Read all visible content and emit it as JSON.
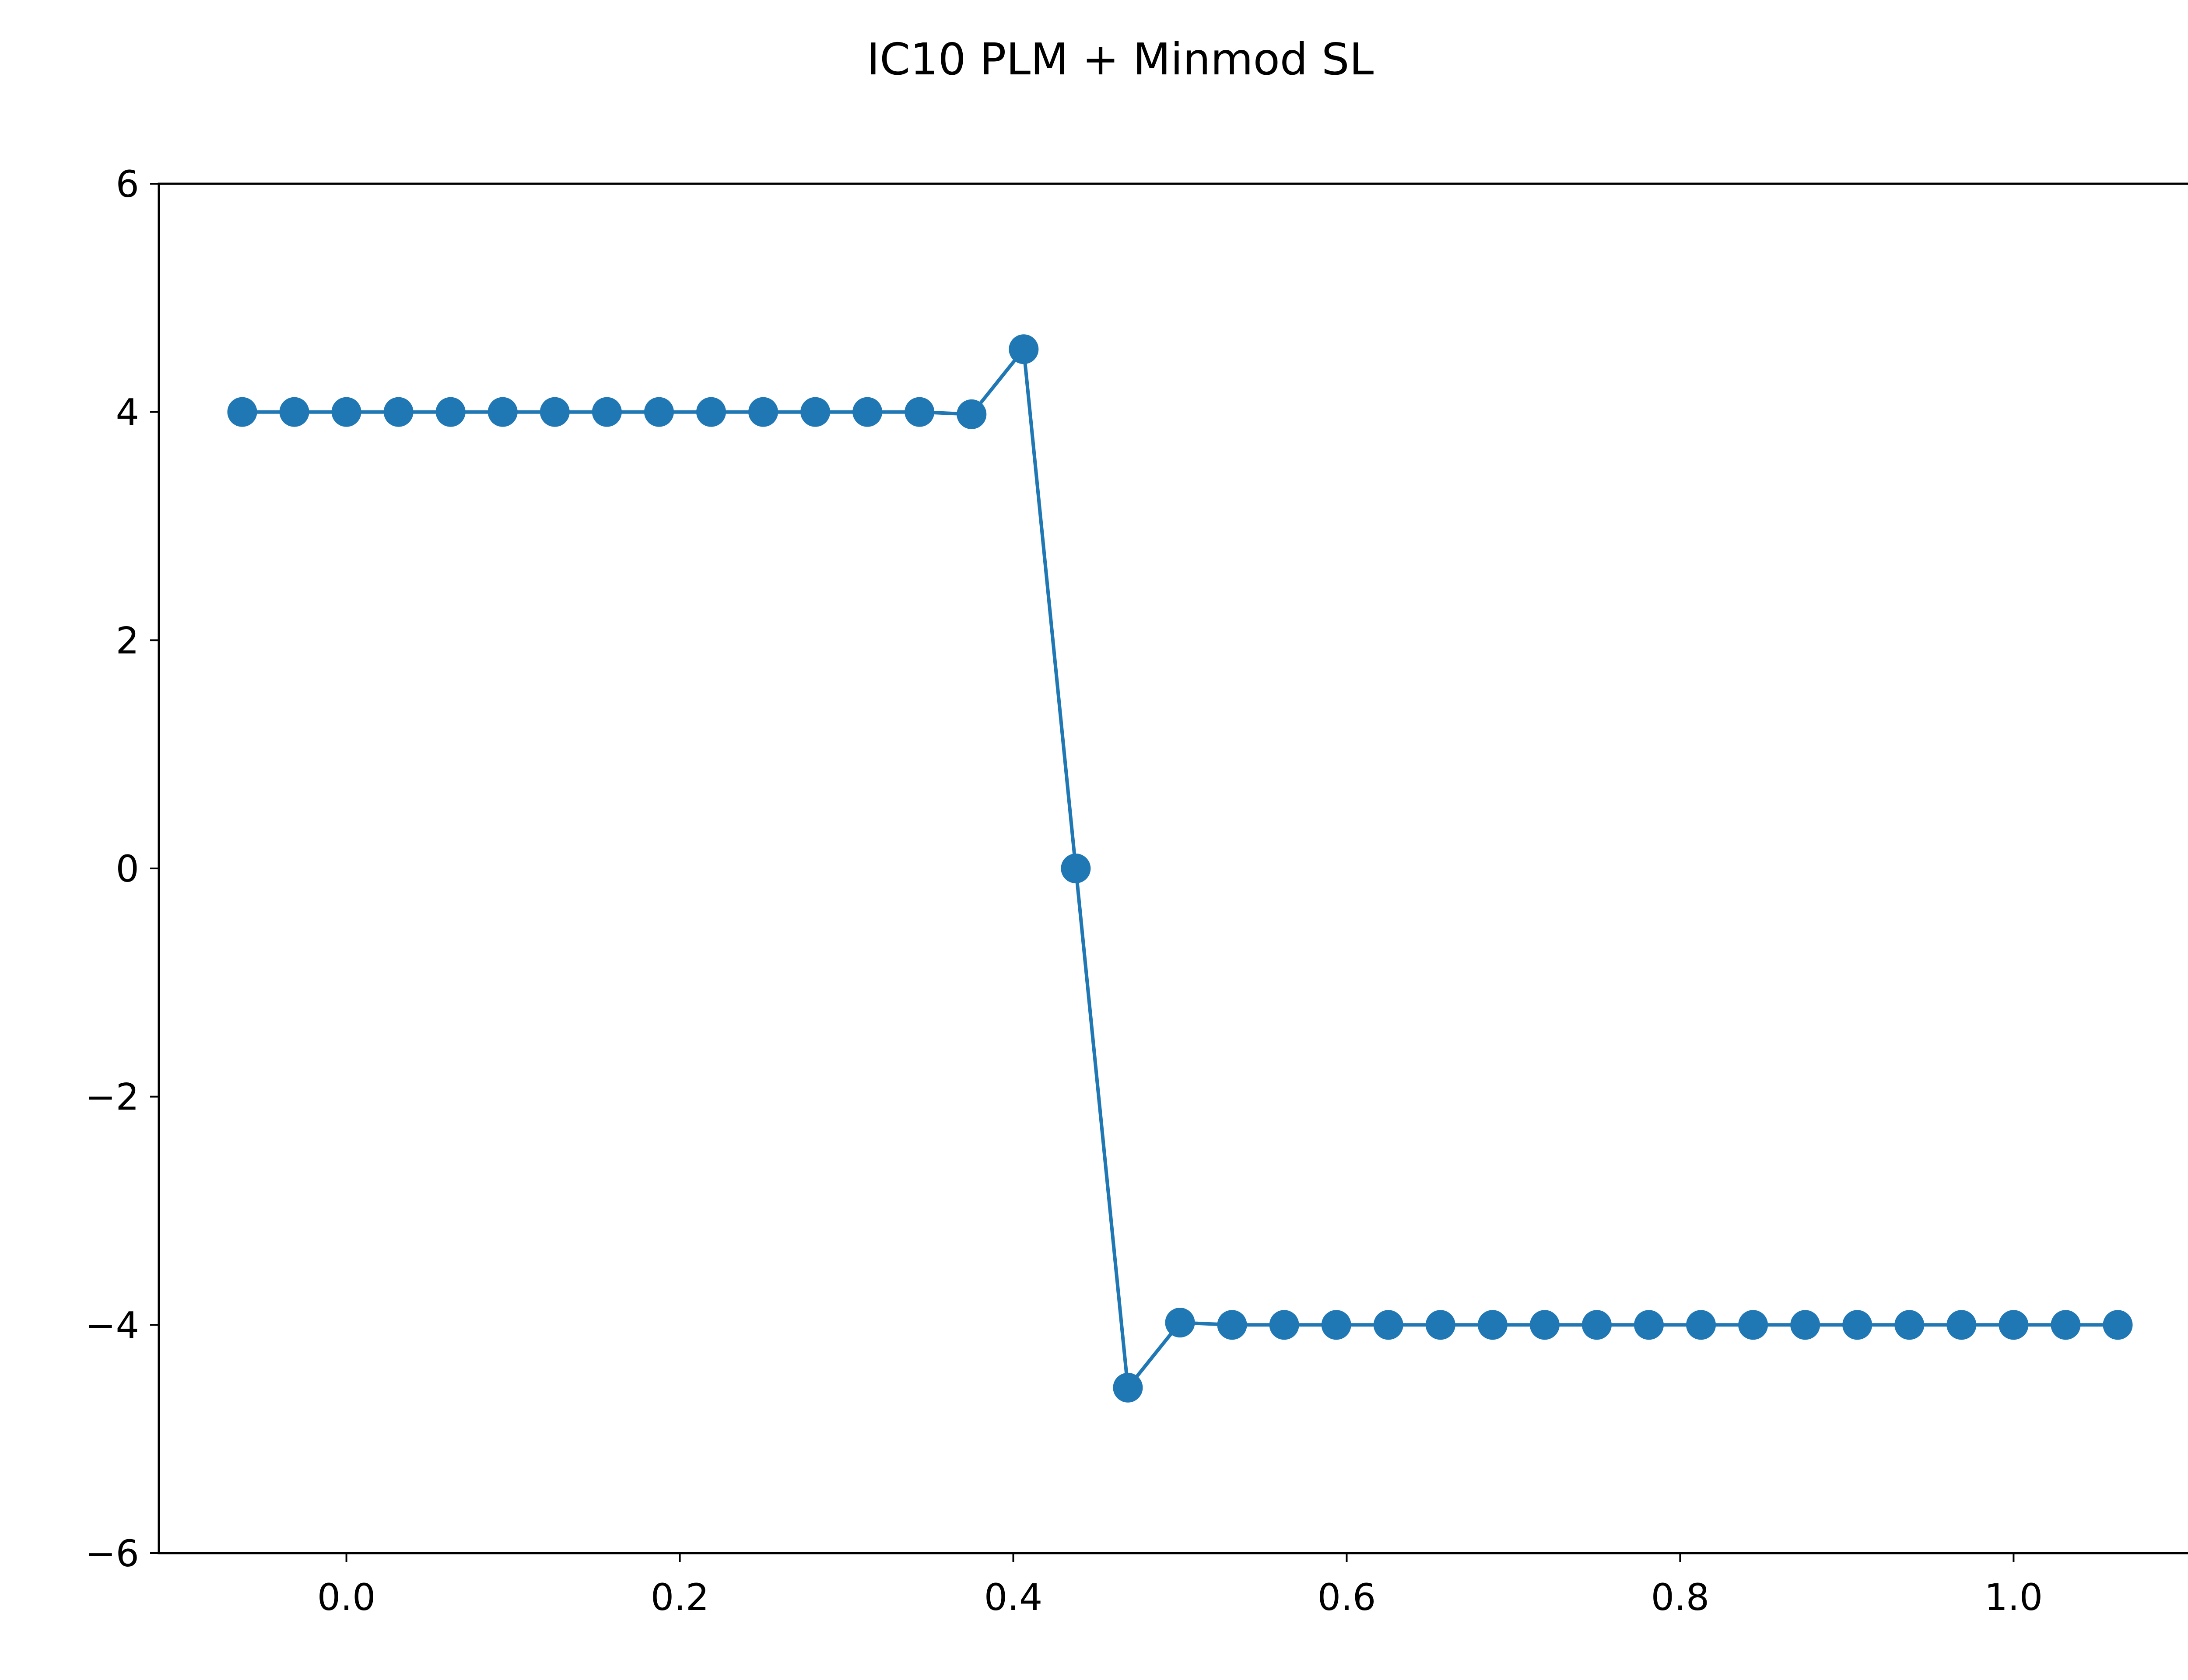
{
  "chart_data": {
    "type": "line",
    "title": "IC10 PLM + Minmod SL",
    "xlabel": "",
    "ylabel": "",
    "xlim": [
      -0.1125,
      1.1125
    ],
    "ylim": [
      -6,
      6
    ],
    "xticks": [
      0.0,
      0.2,
      0.4,
      0.6,
      0.8,
      1.0
    ],
    "xtick_labels": [
      "0.0",
      "0.2",
      "0.4",
      "0.6",
      "0.8",
      "1.0"
    ],
    "yticks": [
      -6,
      -4,
      -2,
      0,
      2,
      4,
      6
    ],
    "ytick_labels": [
      "−6",
      "−4",
      "−2",
      "0",
      "2",
      "4",
      "6"
    ],
    "grid": false,
    "legend": "none",
    "series": [
      {
        "color": "#1f77b4",
        "marker": "circle",
        "x": [
          -0.0625,
          -0.03125,
          0.0,
          0.03125,
          0.0625,
          0.09375,
          0.125,
          0.15625,
          0.1875,
          0.21875,
          0.25,
          0.28125,
          0.3125,
          0.34375,
          0.375,
          0.40625,
          0.4375,
          0.46875,
          0.5,
          0.53125,
          0.5625,
          0.59375,
          0.625,
          0.65625,
          0.6875,
          0.71875,
          0.75,
          0.78125,
          0.8125,
          0.84375,
          0.875,
          0.90625,
          0.9375,
          0.96875,
          1.0,
          1.03125,
          1.0625
        ],
        "y": [
          4,
          4,
          4,
          4,
          4,
          4,
          4,
          4,
          4,
          4,
          4,
          4,
          4,
          4,
          3.98,
          4.55,
          0,
          -4.55,
          -3.98,
          -4,
          -4,
          -4,
          -4,
          -4,
          -4,
          -4,
          -4,
          -4,
          -4,
          -4,
          -4,
          -4,
          -4,
          -4,
          -4,
          -4,
          -4
        ]
      }
    ]
  }
}
